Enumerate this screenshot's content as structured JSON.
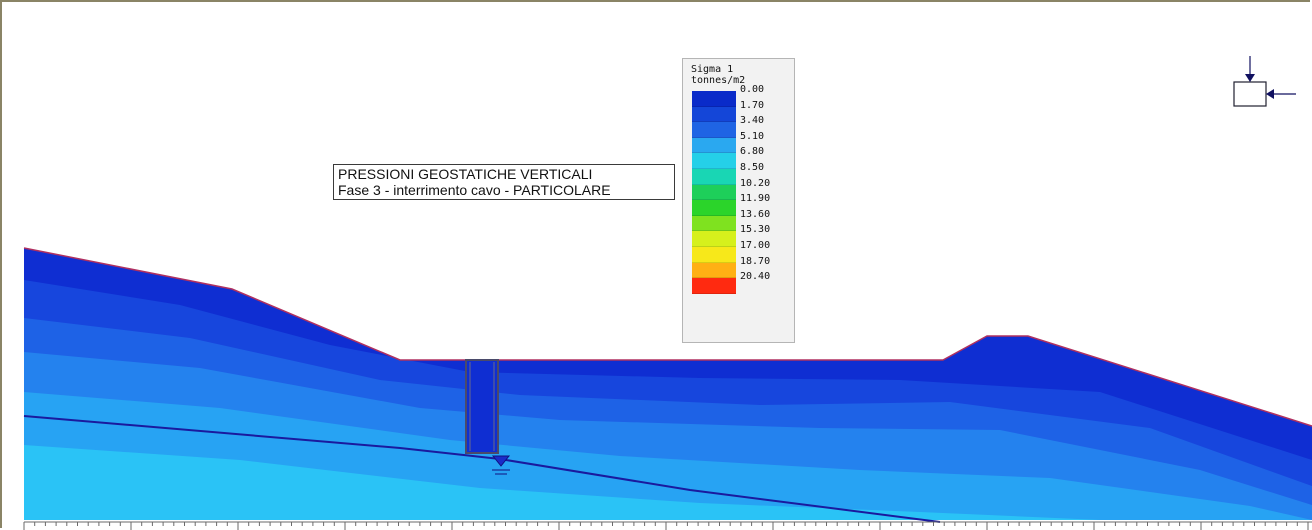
{
  "annotation": {
    "line1": "PRESSIONI GEOSTATICHE VERTICALI",
    "line2": "Fase 3 - interrimento cavo - PARTICOLARE"
  },
  "legend": {
    "title_line1": "Sigma 1",
    "title_line2": "tonnes/m2",
    "items": [
      {
        "label": "0.00",
        "color": "#0a2bc9"
      },
      {
        "label": "1.70",
        "color": "#1446d8"
      },
      {
        "label": "3.40",
        "color": "#1f64e4"
      },
      {
        "label": "5.10",
        "color": "#2aa8f0"
      },
      {
        "label": "6.80",
        "color": "#25d0e8"
      },
      {
        "label": "8.50",
        "color": "#19d6b4"
      },
      {
        "label": "10.20",
        "color": "#1ecf5a"
      },
      {
        "label": "11.90",
        "color": "#2bd42a"
      },
      {
        "label": "13.60",
        "color": "#7fe21f"
      },
      {
        "label": "15.30",
        "color": "#d6f01c"
      },
      {
        "label": "17.00",
        "color": "#f7e81a"
      },
      {
        "label": "18.70",
        "color": "#ffb014"
      },
      {
        "label": "20.40",
        "color": "#ff2a10"
      }
    ]
  },
  "colors": {
    "band_1": "#0f2ed2",
    "band_2": "#1746dd",
    "band_3": "#1e62e6",
    "band_4": "#2482ee",
    "band_5": "#27a3f3",
    "band_6": "#2ac3f6",
    "water_table": "#1a1a9e",
    "ground_outline": "#b03060",
    "trench": "#4a4a6a"
  },
  "icons": {
    "load_symbol": "load-direction-icon",
    "water_marker": "water-level-icon"
  }
}
